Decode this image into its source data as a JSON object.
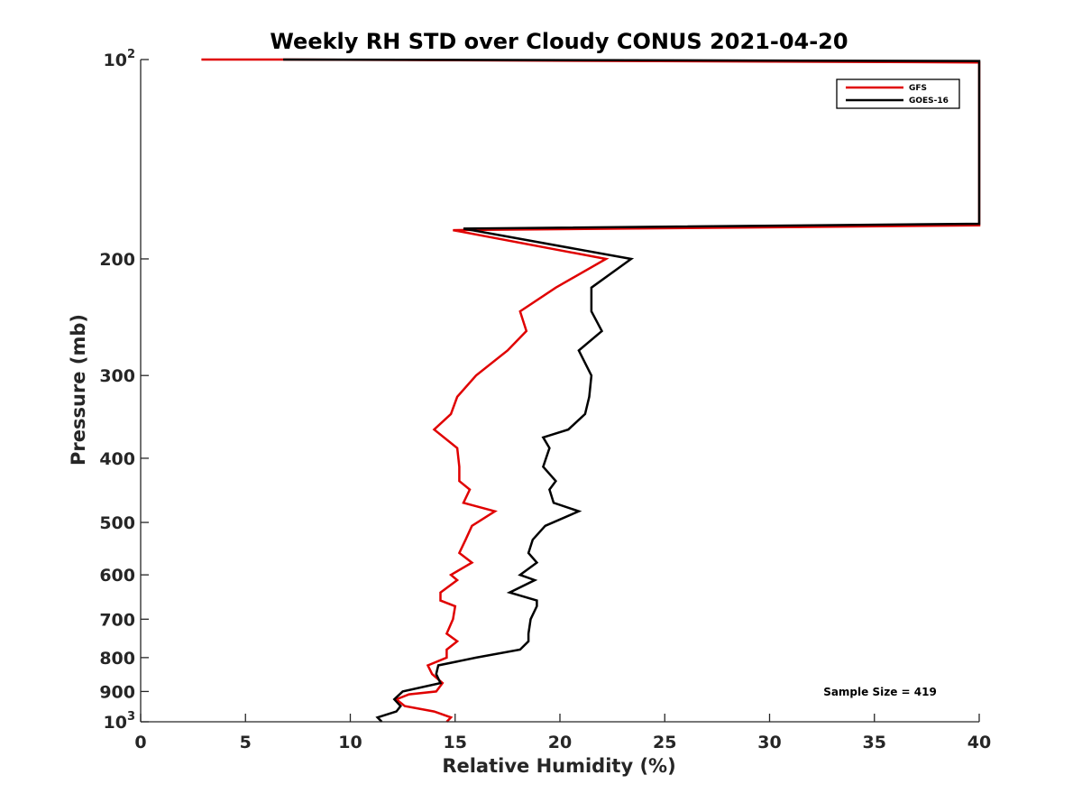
{
  "chart_data": {
    "type": "line",
    "title": "Weekly RH STD over Cloudy CONUS 2021-04-20",
    "xlabel": "Relative Humidity (%)",
    "ylabel": "Pressure (mb)",
    "xlim": [
      0,
      40
    ],
    "ylim": [
      100,
      1000
    ],
    "y_scale": "log",
    "y_reversed": true,
    "grid": false,
    "legend_position": "top-right",
    "x_ticks": [
      {
        "value": 0,
        "label": "0"
      },
      {
        "value": 5,
        "label": "5"
      },
      {
        "value": 10,
        "label": "10"
      },
      {
        "value": 15,
        "label": "15"
      },
      {
        "value": 20,
        "label": "20"
      },
      {
        "value": 25,
        "label": "25"
      },
      {
        "value": 30,
        "label": "30"
      },
      {
        "value": 35,
        "label": "35"
      },
      {
        "value": 40,
        "label": "40"
      }
    ],
    "y_ticks": [
      {
        "value": 100,
        "base": "10",
        "exp": "2"
      },
      {
        "value": 200,
        "label": "200"
      },
      {
        "value": 300,
        "label": "300"
      },
      {
        "value": 400,
        "label": "400"
      },
      {
        "value": 500,
        "label": "500"
      },
      {
        "value": 600,
        "label": "600"
      },
      {
        "value": 700,
        "label": "700"
      },
      {
        "value": 800,
        "label": "800"
      },
      {
        "value": 900,
        "label": "900"
      },
      {
        "value": 1000,
        "base": "10",
        "exp": "3"
      }
    ],
    "annotation": "Sample Size = 419",
    "series": [
      {
        "name": "GFS",
        "color": "#e00000",
        "points": [
          [
            2.9,
            100
          ],
          [
            6.8,
            100
          ],
          [
            40,
            101
          ],
          [
            40,
            178
          ],
          [
            14.9,
            181
          ],
          [
            22.2,
            200
          ],
          [
            19.8,
            221
          ],
          [
            18.1,
            240
          ],
          [
            18.4,
            257
          ],
          [
            17.5,
            275
          ],
          [
            16,
            300
          ],
          [
            15.1,
            323
          ],
          [
            14.8,
            343
          ],
          [
            14,
            362
          ],
          [
            15.1,
            386
          ],
          [
            15.2,
            412
          ],
          [
            15.2,
            433
          ],
          [
            15.7,
            446
          ],
          [
            15.4,
            467
          ],
          [
            16.9,
            481
          ],
          [
            15.8,
            506
          ],
          [
            15.5,
            531
          ],
          [
            15.2,
            556
          ],
          [
            15.8,
            575
          ],
          [
            14.8,
            600
          ],
          [
            15.1,
            611
          ],
          [
            14.3,
            638
          ],
          [
            14.3,
            656
          ],
          [
            15,
            669
          ],
          [
            14.9,
            700
          ],
          [
            14.6,
            736
          ],
          [
            15.1,
            756
          ],
          [
            14.6,
            778
          ],
          [
            14.6,
            800
          ],
          [
            13.7,
            822
          ],
          [
            13.9,
            847
          ],
          [
            14.4,
            874
          ],
          [
            14.1,
            900
          ],
          [
            12.8,
            909
          ],
          [
            12.2,
            925
          ],
          [
            12.6,
            947
          ],
          [
            14,
            965
          ],
          [
            14.8,
            985
          ],
          [
            14.6,
            1000
          ]
        ]
      },
      {
        "name": "GOES-16",
        "color": "#000000",
        "points": [
          [
            6.8,
            100
          ],
          [
            40,
            100.5
          ],
          [
            40,
            177
          ],
          [
            15.4,
            180
          ],
          [
            23.4,
            200
          ],
          [
            21.5,
            221
          ],
          [
            21.5,
            240
          ],
          [
            22,
            257
          ],
          [
            20.9,
            275
          ],
          [
            21.5,
            300
          ],
          [
            21.4,
            323
          ],
          [
            21.2,
            343
          ],
          [
            20.4,
            362
          ],
          [
            19.2,
            372
          ],
          [
            19.5,
            386
          ],
          [
            19.2,
            412
          ],
          [
            19.8,
            433
          ],
          [
            19.5,
            446
          ],
          [
            19.7,
            467
          ],
          [
            20.9,
            481
          ],
          [
            19.3,
            506
          ],
          [
            18.7,
            531
          ],
          [
            18.5,
            556
          ],
          [
            18.9,
            575
          ],
          [
            18.1,
            600
          ],
          [
            18.8,
            611
          ],
          [
            17.6,
            638
          ],
          [
            18.9,
            656
          ],
          [
            18.9,
            669
          ],
          [
            18.6,
            700
          ],
          [
            18.5,
            736
          ],
          [
            18.5,
            756
          ],
          [
            18.1,
            778
          ],
          [
            16,
            800
          ],
          [
            14.2,
            822
          ],
          [
            14.1,
            847
          ],
          [
            14.3,
            874
          ],
          [
            12.5,
            900
          ],
          [
            12.1,
            925
          ],
          [
            12.4,
            947
          ],
          [
            12.2,
            965
          ],
          [
            11.3,
            985
          ],
          [
            11.5,
            1000
          ]
        ]
      }
    ]
  }
}
